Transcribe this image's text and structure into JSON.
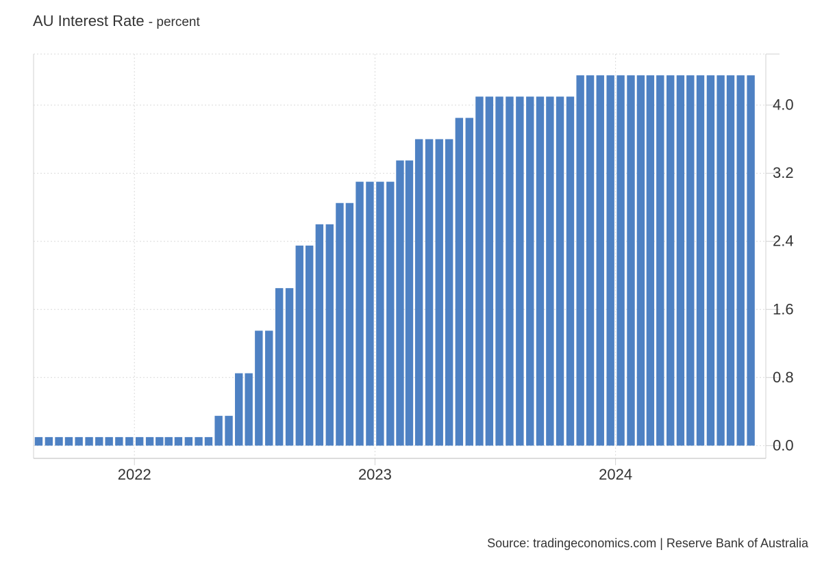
{
  "chart_data": {
    "type": "bar",
    "title": "AU Interest Rate",
    "unit": "percent",
    "source": "Source: tradingeconomics.com | Reserve Bank of Australia",
    "bar_color": "#4e81c3",
    "grid": true,
    "y_axis_side": "right",
    "ylim": [
      -0.15,
      4.6
    ],
    "yticks": [
      0,
      0.8,
      1.6,
      2.4,
      3.2,
      4.0
    ],
    "ytick_labels": [
      "0.0",
      "0.8",
      "1.6",
      "2.4",
      "3.2",
      "4.0"
    ],
    "xlim": [
      "2021-08-01",
      "2024-08-16"
    ],
    "xticks": [
      {
        "date": "2022-01-01",
        "label": "2022"
      },
      {
        "date": "2023-01-01",
        "label": "2023"
      },
      {
        "date": "2024-01-01",
        "label": "2024"
      }
    ],
    "x": [
      "2021-08",
      "2021-09",
      "2021-10",
      "2021-11",
      "2021-12",
      "2022-01",
      "2022-02",
      "2022-03",
      "2022-04",
      "2022-05",
      "2022-06",
      "2022-07",
      "2022-08",
      "2022-09",
      "2022-10",
      "2022-11",
      "2022-12",
      "2023-01",
      "2023-02",
      "2023-03",
      "2023-04",
      "2023-05",
      "2023-06",
      "2023-07",
      "2023-08",
      "2023-09",
      "2023-10",
      "2023-11",
      "2023-12",
      "2024-01",
      "2024-02",
      "2024-03",
      "2024-04",
      "2024-05",
      "2024-06",
      "2024-07"
    ],
    "series": [
      {
        "values": [
          0.1,
          0.1,
          0.1,
          0.1,
          0.1,
          0.1,
          0.1,
          0.1,
          0.1,
          0.35,
          0.85,
          1.35,
          1.85,
          2.35,
          2.6,
          2.85,
          3.1,
          3.1,
          3.35,
          3.6,
          3.6,
          3.85,
          4.1,
          4.1,
          4.1,
          4.1,
          4.1,
          4.35,
          4.35,
          4.35,
          4.35,
          4.35,
          4.35,
          4.35,
          4.35,
          4.35
        ]
      }
    ]
  }
}
